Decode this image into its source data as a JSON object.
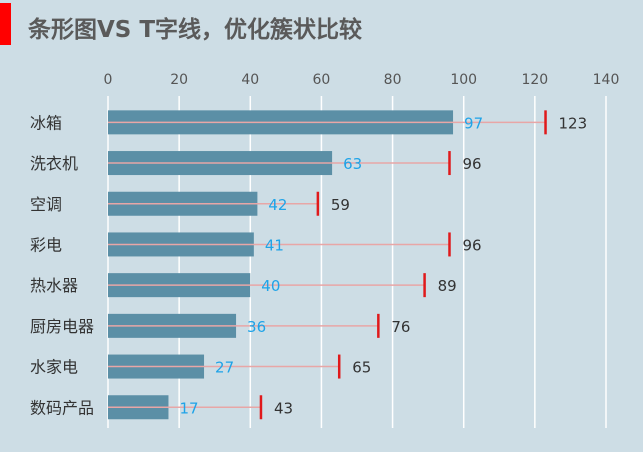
{
  "title": "条形图VS T字线，优化簇状比较",
  "colors": {
    "background": "#cddde5",
    "accent": "#ff0000",
    "bar": "#5b8fa6",
    "t_line": "#e8a6a6",
    "t_marker": "#e0191b",
    "bar_label": "#1ea3e8",
    "target_label": "#333333",
    "grid": "#ffffff"
  },
  "chart_data": {
    "type": "bar",
    "orientation": "horizontal",
    "categories": [
      "冰箱",
      "洗衣机",
      "空调",
      "彩电",
      "热水器",
      "厨房电器",
      "水家电",
      "数码产品"
    ],
    "series": [
      {
        "values": [
          97,
          63,
          42,
          41,
          40,
          36,
          27,
          17
        ]
      },
      {
        "values": [
          123,
          96,
          59,
          96,
          89,
          76,
          65,
          43
        ]
      }
    ],
    "xlim": [
      0,
      140
    ],
    "ticks": [
      0,
      20,
      40,
      60,
      80,
      100,
      120,
      140
    ],
    "axis_position": "top",
    "grid": true,
    "legend": "none"
  }
}
